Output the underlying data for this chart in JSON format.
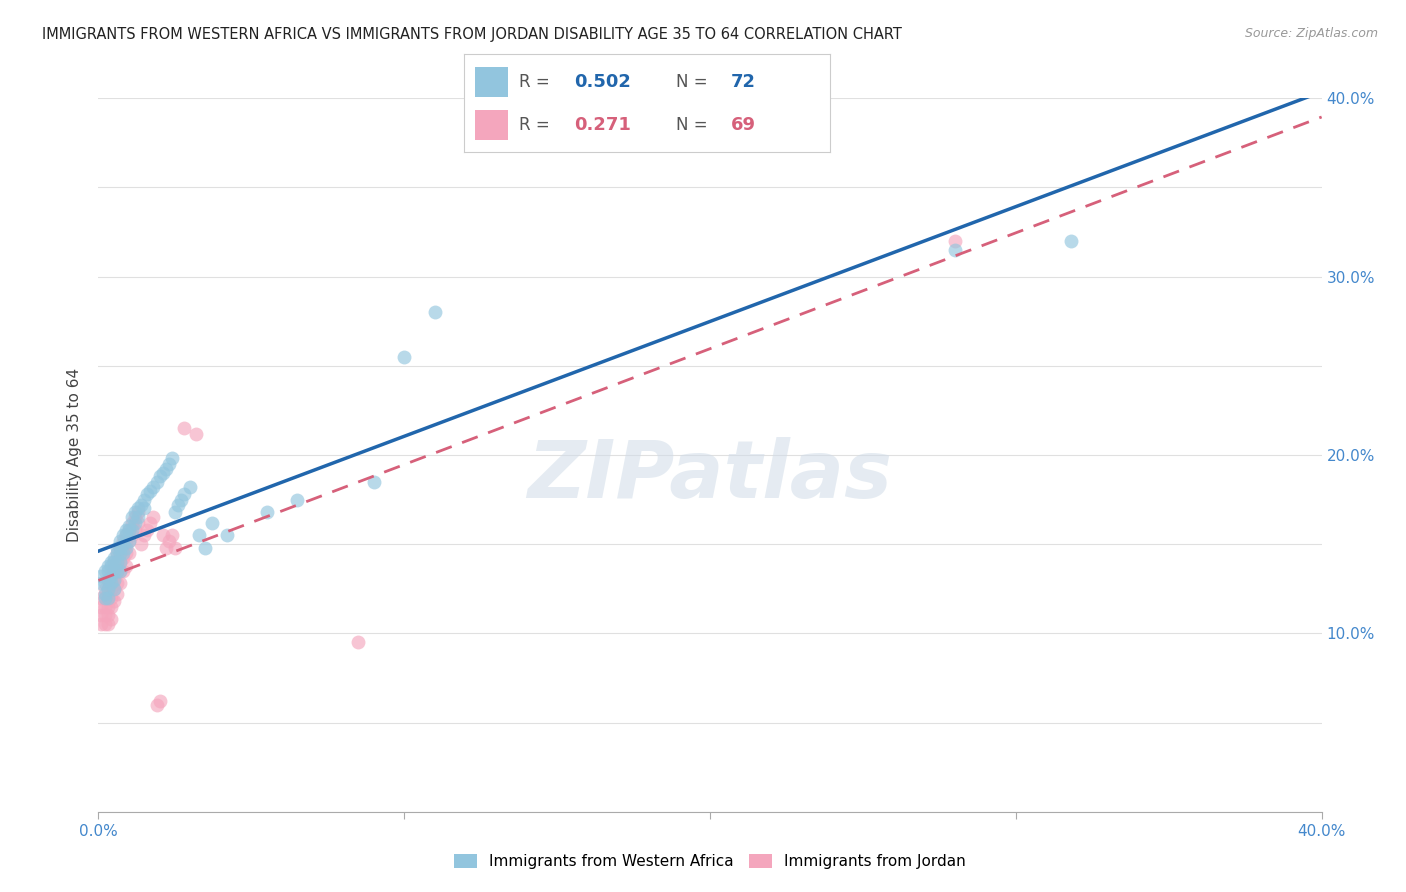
{
  "title": "IMMIGRANTS FROM WESTERN AFRICA VS IMMIGRANTS FROM JORDAN DISABILITY AGE 35 TO 64 CORRELATION CHART",
  "source": "Source: ZipAtlas.com",
  "ylabel": "Disability Age 35 to 64",
  "xlim": [
    0.0,
    0.4
  ],
  "ylim": [
    0.0,
    0.4
  ],
  "xtick_vals": [
    0.0,
    0.1,
    0.2,
    0.3,
    0.4
  ],
  "xtick_labels": [
    "0.0%",
    "",
    "",
    "",
    "40.0%"
  ],
  "ytick_vals": [
    0.1,
    0.2,
    0.3,
    0.4
  ],
  "ytick_labels": [
    "10.0%",
    "20.0%",
    "30.0%",
    "40.0%"
  ],
  "legend1_R": "0.502",
  "legend1_N": "72",
  "legend2_R": "0.271",
  "legend2_N": "69",
  "color_blue": "#92c5de",
  "color_pink": "#f4a6bd",
  "line_blue": "#2166ac",
  "line_pink": "#d6607a",
  "watermark_text": "ZIPatlas",
  "wa_x": [
    0.001,
    0.001,
    0.002,
    0.002,
    0.002,
    0.002,
    0.003,
    0.003,
    0.003,
    0.003,
    0.003,
    0.004,
    0.004,
    0.004,
    0.004,
    0.005,
    0.005,
    0.005,
    0.005,
    0.005,
    0.006,
    0.006,
    0.006,
    0.006,
    0.007,
    0.007,
    0.007,
    0.007,
    0.007,
    0.008,
    0.008,
    0.008,
    0.009,
    0.009,
    0.009,
    0.01,
    0.01,
    0.01,
    0.011,
    0.011,
    0.012,
    0.012,
    0.013,
    0.013,
    0.014,
    0.015,
    0.015,
    0.016,
    0.017,
    0.018,
    0.019,
    0.02,
    0.021,
    0.022,
    0.023,
    0.024,
    0.025,
    0.026,
    0.027,
    0.028,
    0.03,
    0.033,
    0.035,
    0.037,
    0.042,
    0.055,
    0.065,
    0.09,
    0.1,
    0.11,
    0.28,
    0.318
  ],
  "wa_y": [
    0.132,
    0.128,
    0.135,
    0.128,
    0.122,
    0.12,
    0.138,
    0.135,
    0.13,
    0.125,
    0.12,
    0.14,
    0.138,
    0.132,
    0.128,
    0.142,
    0.14,
    0.135,
    0.13,
    0.125,
    0.148,
    0.145,
    0.14,
    0.135,
    0.152,
    0.148,
    0.145,
    0.14,
    0.135,
    0.155,
    0.15,
    0.145,
    0.158,
    0.155,
    0.148,
    0.16,
    0.158,
    0.152,
    0.165,
    0.158,
    0.168,
    0.162,
    0.17,
    0.165,
    0.172,
    0.175,
    0.17,
    0.178,
    0.18,
    0.182,
    0.185,
    0.188,
    0.19,
    0.192,
    0.195,
    0.198,
    0.168,
    0.172,
    0.175,
    0.178,
    0.182,
    0.155,
    0.148,
    0.162,
    0.155,
    0.168,
    0.175,
    0.185,
    0.255,
    0.28,
    0.315,
    0.32
  ],
  "jo_x": [
    0.001,
    0.001,
    0.001,
    0.001,
    0.002,
    0.002,
    0.002,
    0.002,
    0.002,
    0.003,
    0.003,
    0.003,
    0.003,
    0.003,
    0.003,
    0.004,
    0.004,
    0.004,
    0.004,
    0.004,
    0.004,
    0.005,
    0.005,
    0.005,
    0.005,
    0.005,
    0.006,
    0.006,
    0.006,
    0.006,
    0.006,
    0.007,
    0.007,
    0.007,
    0.007,
    0.007,
    0.008,
    0.008,
    0.008,
    0.008,
    0.009,
    0.009,
    0.009,
    0.009,
    0.01,
    0.01,
    0.01,
    0.011,
    0.011,
    0.012,
    0.012,
    0.013,
    0.013,
    0.014,
    0.015,
    0.016,
    0.017,
    0.018,
    0.019,
    0.02,
    0.021,
    0.022,
    0.023,
    0.024,
    0.025,
    0.028,
    0.032,
    0.085,
    0.28
  ],
  "jo_y": [
    0.12,
    0.115,
    0.11,
    0.105,
    0.125,
    0.12,
    0.115,
    0.11,
    0.105,
    0.13,
    0.125,
    0.12,
    0.115,
    0.11,
    0.105,
    0.135,
    0.13,
    0.125,
    0.12,
    0.115,
    0.108,
    0.14,
    0.135,
    0.13,
    0.125,
    0.118,
    0.145,
    0.14,
    0.135,
    0.128,
    0.122,
    0.148,
    0.145,
    0.14,
    0.135,
    0.128,
    0.152,
    0.148,
    0.142,
    0.135,
    0.155,
    0.15,
    0.145,
    0.138,
    0.158,
    0.152,
    0.145,
    0.162,
    0.155,
    0.165,
    0.158,
    0.168,
    0.162,
    0.15,
    0.155,
    0.158,
    0.162,
    0.165,
    0.06,
    0.062,
    0.155,
    0.148,
    0.152,
    0.155,
    0.148,
    0.215,
    0.212,
    0.095,
    0.32
  ]
}
